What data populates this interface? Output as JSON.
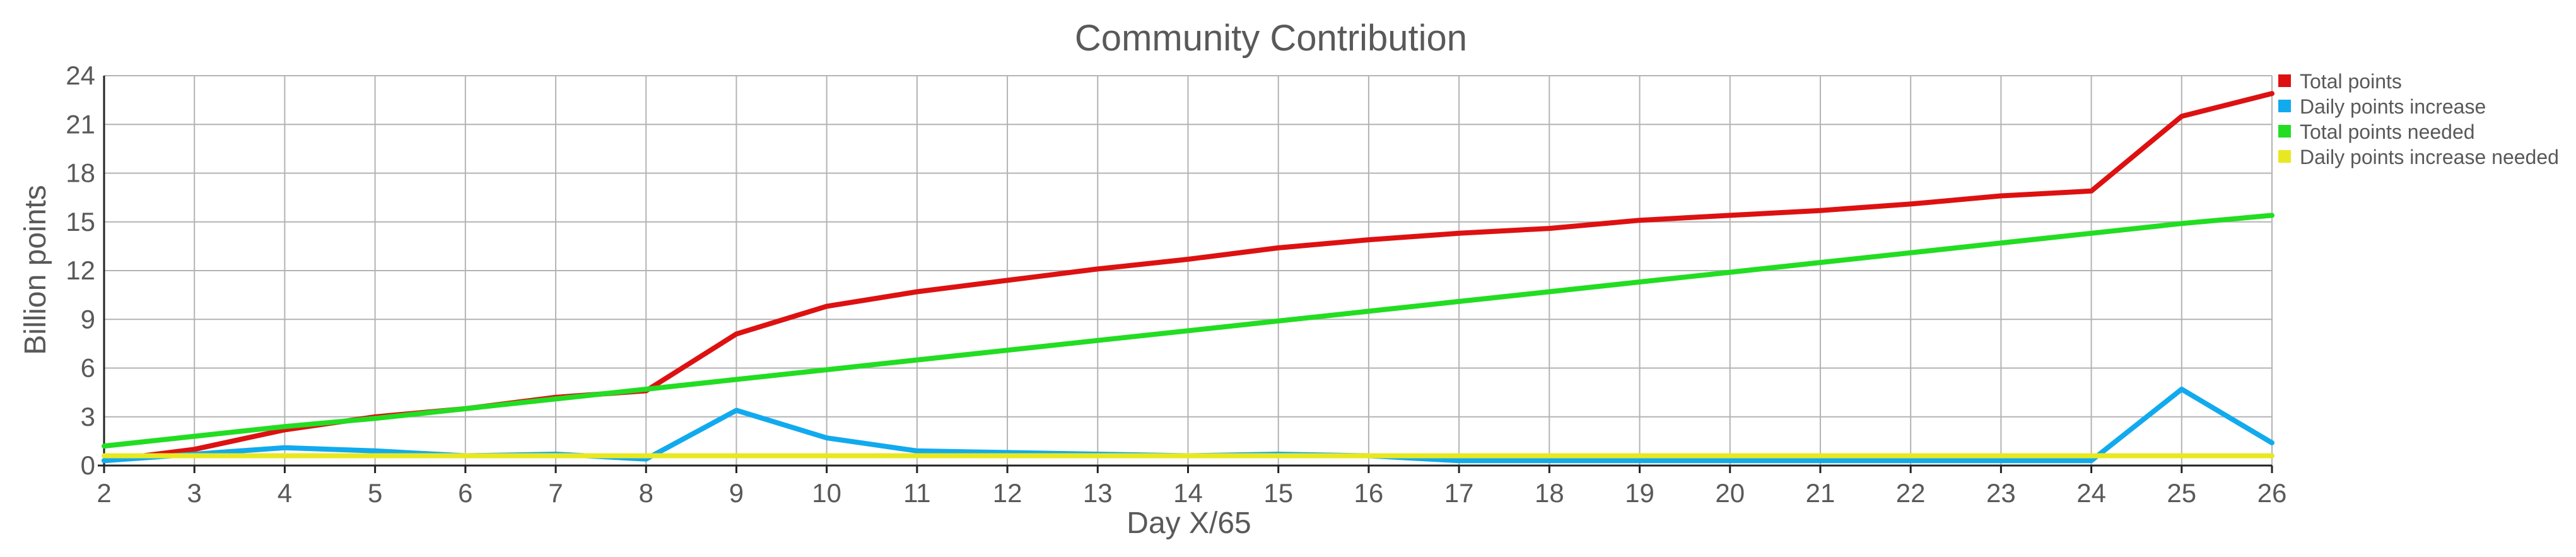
{
  "chart_data": {
    "type": "line",
    "title": "Community Contribution",
    "xlabel": "Day X/65",
    "ylabel": "Billion points",
    "x": [
      2,
      3,
      4,
      5,
      6,
      7,
      8,
      9,
      10,
      11,
      12,
      13,
      14,
      15,
      16,
      17,
      18,
      19,
      20,
      21,
      22,
      23,
      24,
      25,
      26
    ],
    "ylim": [
      0,
      24
    ],
    "yticks": [
      0,
      3,
      6,
      9,
      12,
      15,
      18,
      21,
      24
    ],
    "grid": true,
    "legend_position": "right",
    "series": [
      {
        "name": "Total points",
        "color": "#dd1111",
        "values": [
          0.3,
          1.0,
          2.2,
          3.0,
          3.5,
          4.2,
          4.6,
          8.1,
          9.8,
          10.7,
          11.4,
          12.1,
          12.7,
          13.4,
          13.9,
          14.3,
          14.6,
          15.1,
          15.4,
          15.7,
          16.1,
          16.6,
          16.9,
          21.5,
          22.9
        ]
      },
      {
        "name": "Daily points increase",
        "color": "#11aaee",
        "values": [
          0.3,
          0.7,
          1.1,
          0.9,
          0.6,
          0.7,
          0.4,
          3.4,
          1.7,
          0.9,
          0.8,
          0.7,
          0.6,
          0.7,
          0.6,
          0.3,
          0.3,
          0.3,
          0.3,
          0.3,
          0.3,
          0.3,
          0.3,
          4.7,
          1.4
        ]
      },
      {
        "name": "Total points needed",
        "color": "#22dd22",
        "values": [
          1.2,
          1.8,
          2.4,
          2.9,
          3.5,
          4.1,
          4.7,
          5.3,
          5.9,
          6.5,
          7.1,
          7.7,
          8.3,
          8.9,
          9.5,
          10.1,
          10.7,
          11.3,
          11.9,
          12.5,
          13.1,
          13.7,
          14.3,
          14.9,
          15.4
        ]
      },
      {
        "name": "Daily points increase needed",
        "color": "#e8e822",
        "values": [
          0.6,
          0.6,
          0.6,
          0.6,
          0.6,
          0.6,
          0.6,
          0.6,
          0.6,
          0.6,
          0.6,
          0.6,
          0.6,
          0.6,
          0.6,
          0.6,
          0.6,
          0.6,
          0.6,
          0.6,
          0.6,
          0.6,
          0.6,
          0.6,
          0.6
        ]
      }
    ]
  }
}
